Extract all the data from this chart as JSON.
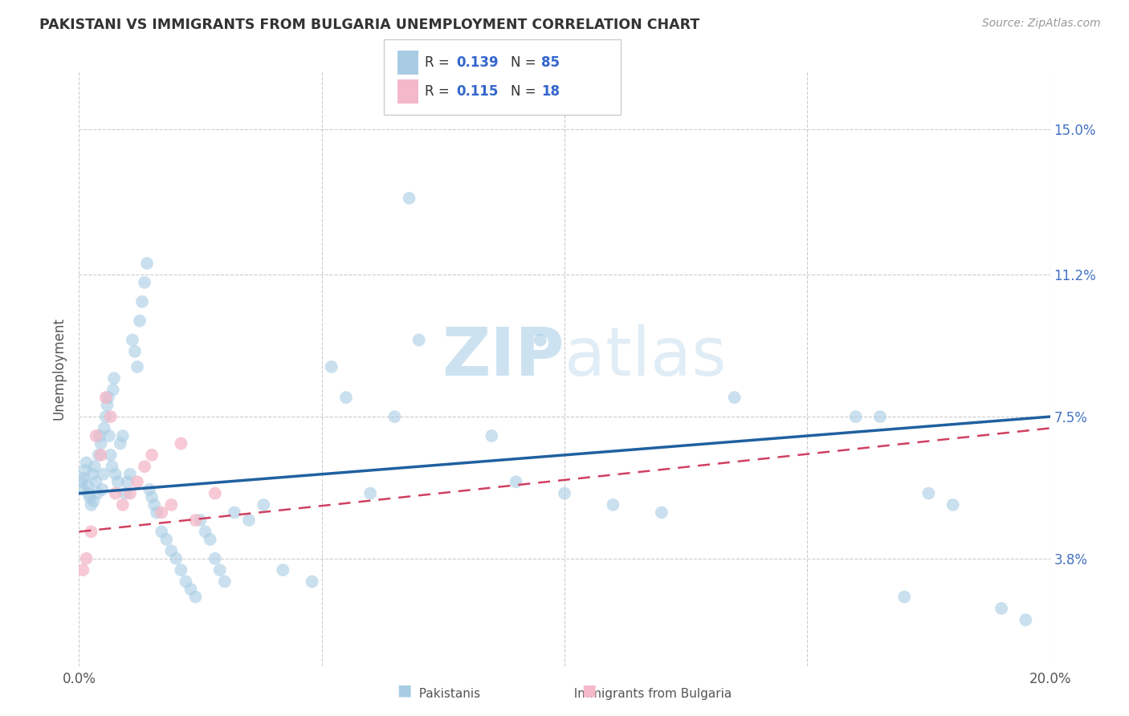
{
  "title": "PAKISTANI VS IMMIGRANTS FROM BULGARIA UNEMPLOYMENT CORRELATION CHART",
  "source": "Source: ZipAtlas.com",
  "ylabel": "Unemployment",
  "ytick_labels": [
    "3.8%",
    "7.5%",
    "11.2%",
    "15.0%"
  ],
  "ytick_values": [
    3.8,
    7.5,
    11.2,
    15.0
  ],
  "xmin": 0.0,
  "xmax": 20.0,
  "ymin": 1.0,
  "ymax": 16.5,
  "blue_color": "#a8cce4",
  "pink_color": "#f4b8c8",
  "blue_line_color": "#2060a0",
  "pink_line_color": "#d04060",
  "watermark_color": "#c8dff0",
  "blue_line_y0": 5.5,
  "blue_line_y1": 7.5,
  "pink_line_y0": 4.5,
  "pink_line_y1": 7.2,
  "pak_x": [
    0.05,
    0.08,
    0.1,
    0.12,
    0.15,
    0.18,
    0.2,
    0.22,
    0.25,
    0.28,
    0.3,
    0.32,
    0.35,
    0.38,
    0.4,
    0.42,
    0.45,
    0.48,
    0.5,
    0.52,
    0.55,
    0.58,
    0.6,
    0.62,
    0.65,
    0.68,
    0.7,
    0.72,
    0.75,
    0.8,
    0.85,
    0.9,
    0.95,
    1.0,
    1.05,
    1.1,
    1.15,
    1.2,
    1.25,
    1.3,
    1.35,
    1.4,
    1.45,
    1.5,
    1.55,
    1.6,
    1.7,
    1.8,
    1.9,
    2.0,
    2.1,
    2.2,
    2.3,
    2.4,
    2.5,
    2.6,
    2.7,
    2.8,
    2.9,
    3.0,
    3.2,
    3.5,
    3.8,
    4.2,
    4.8,
    5.5,
    6.0,
    6.5,
    7.0,
    8.5,
    9.0,
    10.0,
    11.0,
    12.0,
    13.5,
    16.0,
    16.5,
    17.5,
    18.0,
    19.0,
    19.5,
    5.2,
    6.8,
    9.5,
    17.0
  ],
  "pak_y": [
    5.8,
    5.6,
    5.9,
    6.1,
    6.3,
    5.7,
    5.5,
    5.4,
    5.2,
    6.0,
    5.3,
    6.2,
    5.8,
    5.5,
    6.5,
    7.0,
    6.8,
    5.6,
    6.0,
    7.2,
    7.5,
    7.8,
    8.0,
    7.0,
    6.5,
    6.2,
    8.2,
    8.5,
    6.0,
    5.8,
    6.8,
    7.0,
    5.5,
    5.8,
    6.0,
    9.5,
    9.2,
    8.8,
    10.0,
    10.5,
    11.0,
    11.5,
    5.6,
    5.4,
    5.2,
    5.0,
    4.5,
    4.3,
    4.0,
    3.8,
    3.5,
    3.2,
    3.0,
    2.8,
    4.8,
    4.5,
    4.3,
    3.8,
    3.5,
    3.2,
    5.0,
    4.8,
    5.2,
    3.5,
    3.2,
    8.0,
    5.5,
    7.5,
    9.5,
    7.0,
    5.8,
    5.5,
    5.2,
    5.0,
    8.0,
    7.5,
    7.5,
    5.5,
    5.2,
    2.5,
    2.2,
    8.8,
    13.2,
    9.5,
    2.8
  ],
  "bul_x": [
    0.08,
    0.15,
    0.25,
    0.35,
    0.45,
    0.55,
    0.65,
    0.75,
    0.9,
    1.05,
    1.2,
    1.35,
    1.5,
    1.7,
    1.9,
    2.1,
    2.4,
    2.8
  ],
  "bul_y": [
    3.5,
    3.8,
    4.5,
    7.0,
    6.5,
    8.0,
    7.5,
    5.5,
    5.2,
    5.5,
    5.8,
    6.2,
    6.5,
    5.0,
    5.2,
    6.8,
    4.8,
    5.5
  ]
}
